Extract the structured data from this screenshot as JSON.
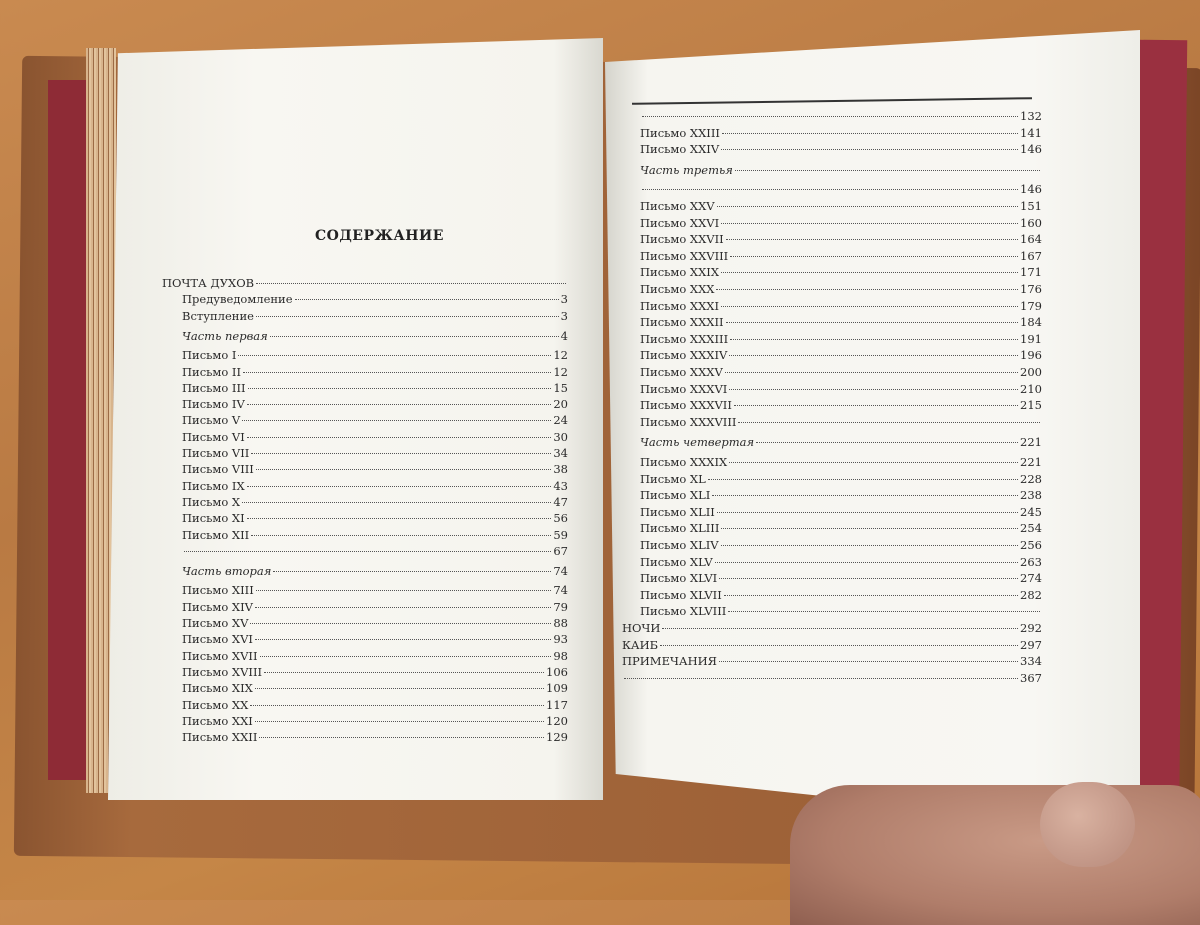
{
  "left_page": {
    "title": "СОДЕРЖАНИЕ",
    "entries": [
      {
        "label": "ПОЧТА ДУХОВ",
        "page": ""
      },
      {
        "label": "Предуведомление",
        "page": "3",
        "indent": true
      },
      {
        "label": "Вступление",
        "page": "3",
        "indent": true
      },
      {
        "label": "Часть первая",
        "page": "4",
        "indent": true,
        "italic": true
      },
      {
        "label": "Письмо I",
        "page": "12",
        "indent": true
      },
      {
        "label": "Письмо II",
        "page": "12",
        "indent": true
      },
      {
        "label": "Письмо III",
        "page": "15",
        "indent": true
      },
      {
        "label": "Письмо IV",
        "page": "20",
        "indent": true
      },
      {
        "label": "Письмо V",
        "page": "24",
        "indent": true
      },
      {
        "label": "Письмо VI",
        "page": "30",
        "indent": true
      },
      {
        "label": "Письмо VII",
        "page": "34",
        "indent": true
      },
      {
        "label": "Письмо VIII",
        "page": "38",
        "indent": true
      },
      {
        "label": "Письмо IX",
        "page": "43",
        "indent": true
      },
      {
        "label": "Письмо X",
        "page": "47",
        "indent": true
      },
      {
        "label": "Письмо XI",
        "page": "56",
        "indent": true
      },
      {
        "label": "Письмо XII",
        "page": "59",
        "indent": true
      },
      {
        "label": "",
        "page": "67",
        "indent": true
      },
      {
        "label": "Часть вторая",
        "page": "74",
        "indent": true,
        "italic": true
      },
      {
        "label": "Письмо XIII",
        "page": "74",
        "indent": true
      },
      {
        "label": "Письмо XIV",
        "page": "79",
        "indent": true
      },
      {
        "label": "Письмо XV",
        "page": "88",
        "indent": true
      },
      {
        "label": "Письмо XVI",
        "page": "93",
        "indent": true
      },
      {
        "label": "Письмо XVII",
        "page": "98",
        "indent": true
      },
      {
        "label": "Письмо XVIII",
        "page": "106",
        "indent": true
      },
      {
        "label": "Письмо XIX",
        "page": "109",
        "indent": true
      },
      {
        "label": "Письмо XX",
        "page": "117",
        "indent": true
      },
      {
        "label": "Письмо XXI",
        "page": "120",
        "indent": true
      },
      {
        "label": "Письмо XXII",
        "page": "129",
        "indent": true
      }
    ]
  },
  "right_page": {
    "entries": [
      {
        "label": "",
        "page": "132",
        "indent": true
      },
      {
        "label": "Письмо XXIII",
        "page": "141",
        "indent": true
      },
      {
        "label": "Письмо XXIV",
        "page": "146",
        "indent": true
      },
      {
        "label": "Часть третья",
        "page": "",
        "indent": true,
        "italic": true
      },
      {
        "label": "",
        "page": "146",
        "indent": true
      },
      {
        "label": "Письмо XXV",
        "page": "151",
        "indent": true
      },
      {
        "label": "Письмо XXVI",
        "page": "160",
        "indent": true
      },
      {
        "label": "Письмо XXVII",
        "page": "164",
        "indent": true
      },
      {
        "label": "Письмо XXVIII",
        "page": "167",
        "indent": true
      },
      {
        "label": "Письмо XXIX",
        "page": "171",
        "indent": true
      },
      {
        "label": "Письмо XXX",
        "page": "176",
        "indent": true
      },
      {
        "label": "Письмо XXXI",
        "page": "179",
        "indent": true
      },
      {
        "label": "Письмо XXXII",
        "page": "184",
        "indent": true
      },
      {
        "label": "Письмо XXXIII",
        "page": "191",
        "indent": true
      },
      {
        "label": "Письмо XXXIV",
        "page": "196",
        "indent": true
      },
      {
        "label": "Письмо XXXV",
        "page": "200",
        "indent": true
      },
      {
        "label": "Письмо XXXVI",
        "page": "210",
        "indent": true
      },
      {
        "label": "Письмо XXXVII",
        "page": "215",
        "indent": true
      },
      {
        "label": "Письмо XXXVIII",
        "page": "",
        "indent": true
      },
      {
        "label": "Часть четвертая",
        "page": "221",
        "indent": true,
        "italic": true
      },
      {
        "label": "Письмо XXXIX",
        "page": "221",
        "indent": true
      },
      {
        "label": "Письмо XL",
        "page": "228",
        "indent": true
      },
      {
        "label": "Письмо XLI",
        "page": "238",
        "indent": true
      },
      {
        "label": "Письмо XLII",
        "page": "245",
        "indent": true
      },
      {
        "label": "Письмо XLIII",
        "page": "254",
        "indent": true
      },
      {
        "label": "Письмо XLIV",
        "page": "256",
        "indent": true
      },
      {
        "label": "Письмо XLV",
        "page": "263",
        "indent": true
      },
      {
        "label": "Письмо XLVI",
        "page": "274",
        "indent": true
      },
      {
        "label": "Письмо XLVII",
        "page": "282",
        "indent": true
      },
      {
        "label": "Письмо XLVIII",
        "page": "",
        "indent": true
      },
      {
        "label": "НОЧИ",
        "page": "292"
      },
      {
        "label": "КАИБ",
        "page": "297"
      },
      {
        "label": "ПРИМЕЧАНИЯ",
        "page": "334"
      },
      {
        "label": "",
        "page": "367"
      }
    ]
  },
  "colors": {
    "paper": "#f7f6f1",
    "endpaper": "#8e2b36",
    "cover": "#9a5e35",
    "table": "#c08045"
  }
}
